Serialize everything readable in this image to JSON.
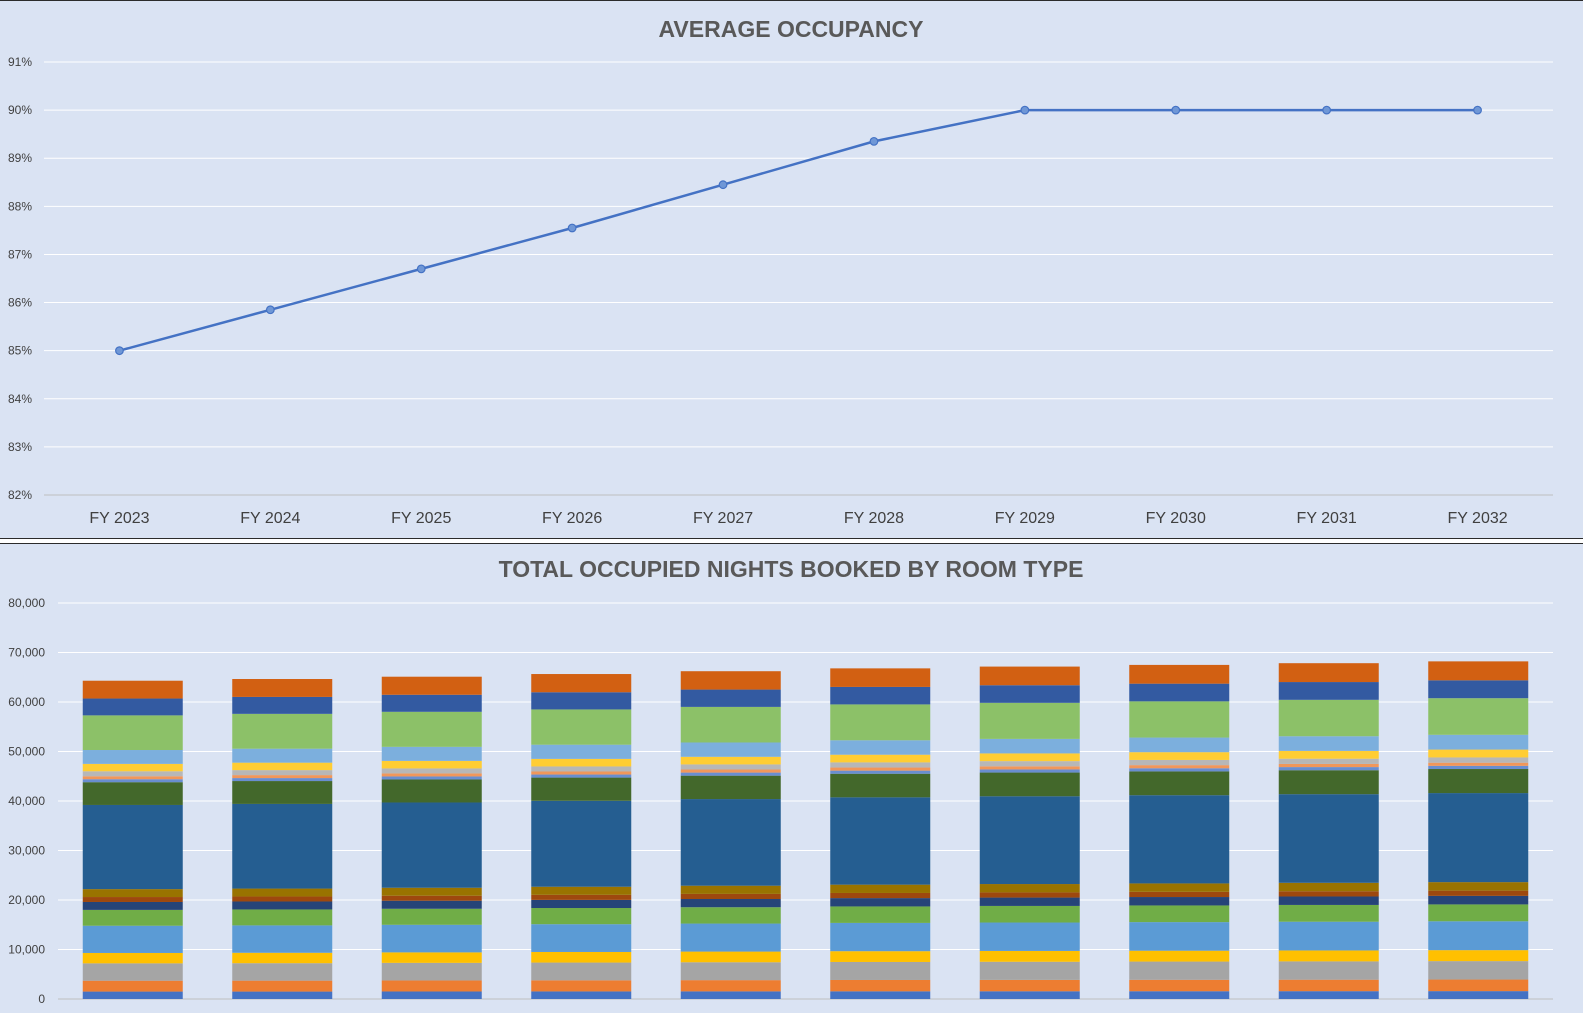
{
  "chart_data": [
    {
      "type": "line",
      "title": "AVERAGE OCCUPANCY",
      "categories": [
        "FY 2023",
        "FY 2024",
        "FY 2025",
        "FY 2026",
        "FY 2027",
        "FY 2028",
        "FY 2029",
        "FY 2030",
        "FY 2031",
        "FY 2032"
      ],
      "values": [
        85.0,
        85.85,
        86.7,
        87.55,
        88.45,
        89.35,
        90.0,
        90.0,
        90.0,
        90.0
      ],
      "ylim": [
        82,
        91
      ],
      "yticks": [
        "82%",
        "83%",
        "84%",
        "85%",
        "86%",
        "87%",
        "88%",
        "89%",
        "90%",
        "91%"
      ],
      "grid": true,
      "color": "#4472c4"
    },
    {
      "type": "bar",
      "stacked": true,
      "title": "TOTAL OCCUPIED NIGHTS BOOKED BY ROOM TYPE",
      "categories": [
        "FY 2023",
        "FY 2024",
        "FY 2025",
        "FY 2026",
        "FY 2027",
        "FY 2028",
        "FY 2029",
        "FY 2030",
        "FY 2031",
        "FY 2032"
      ],
      "ylim": [
        0,
        80000
      ],
      "yticks": [
        "0",
        "10,000",
        "20,000",
        "30,000",
        "40,000",
        "50,000",
        "60,000",
        "70,000",
        "80,000"
      ],
      "grid": true,
      "series": [
        {
          "color": "#4472c4",
          "values": [
            1500,
            1500,
            1520,
            1530,
            1540,
            1550,
            1560,
            1570,
            1580,
            1590
          ]
        },
        {
          "color": "#ed7d31",
          "values": [
            2200,
            2210,
            2230,
            2250,
            2270,
            2290,
            2300,
            2310,
            2320,
            2340
          ]
        },
        {
          "color": "#a5a5a5",
          "values": [
            3500,
            3520,
            3550,
            3580,
            3610,
            3640,
            3660,
            3680,
            3700,
            3720
          ]
        },
        {
          "color": "#ffc000",
          "values": [
            2100,
            2110,
            2120,
            2140,
            2160,
            2180,
            2190,
            2200,
            2210,
            2220
          ]
        },
        {
          "color": "#5b9bd5",
          "values": [
            5500,
            5530,
            5570,
            5610,
            5660,
            5710,
            5740,
            5770,
            5800,
            5830
          ]
        },
        {
          "color": "#70ad47",
          "values": [
            3200,
            3220,
            3240,
            3270,
            3300,
            3330,
            3350,
            3370,
            3390,
            3410
          ]
        },
        {
          "color": "#264478",
          "values": [
            1600,
            1610,
            1620,
            1640,
            1660,
            1680,
            1690,
            1700,
            1710,
            1720
          ]
        },
        {
          "color": "#9e480e",
          "values": [
            1000,
            1000,
            1010,
            1020,
            1030,
            1040,
            1045,
            1050,
            1055,
            1060
          ]
        },
        {
          "color": "#997300",
          "values": [
            1600,
            1610,
            1620,
            1640,
            1660,
            1680,
            1690,
            1700,
            1710,
            1720
          ]
        },
        {
          "color": "#255e91",
          "values": [
            17000,
            17100,
            17220,
            17360,
            17500,
            17640,
            17730,
            17820,
            17900,
            17990
          ]
        },
        {
          "color": "#43682b",
          "values": [
            4600,
            4620,
            4650,
            4690,
            4730,
            4770,
            4790,
            4810,
            4840,
            4860
          ]
        },
        {
          "color": "#698ed0",
          "values": [
            600,
            600,
            610,
            615,
            620,
            625,
            630,
            632,
            635,
            640
          ]
        },
        {
          "color": "#f1975a",
          "values": [
            600,
            600,
            610,
            615,
            620,
            625,
            630,
            632,
            635,
            640
          ]
        },
        {
          "color": "#b7b7b7",
          "values": [
            1000,
            1005,
            1010,
            1020,
            1030,
            1040,
            1045,
            1050,
            1055,
            1060
          ]
        },
        {
          "color": "#ffcd33",
          "values": [
            1500,
            1510,
            1520,
            1530,
            1540,
            1555,
            1565,
            1570,
            1580,
            1590
          ]
        },
        {
          "color": "#7cafdd",
          "values": [
            2800,
            2820,
            2840,
            2860,
            2890,
            2910,
            2930,
            2950,
            2960,
            2980
          ]
        },
        {
          "color": "#8cc168",
          "values": [
            7000,
            7040,
            7080,
            7130,
            7190,
            7250,
            7290,
            7320,
            7360,
            7400
          ]
        },
        {
          "color": "#335aa1",
          "values": [
            3400,
            3420,
            3440,
            3470,
            3500,
            3530,
            3550,
            3570,
            3590,
            3610
          ]
        },
        {
          "color": "#d26012",
          "values": [
            3600,
            3620,
            3650,
            3680,
            3710,
            3750,
            3770,
            3790,
            3810,
            3830
          ]
        }
      ]
    }
  ]
}
